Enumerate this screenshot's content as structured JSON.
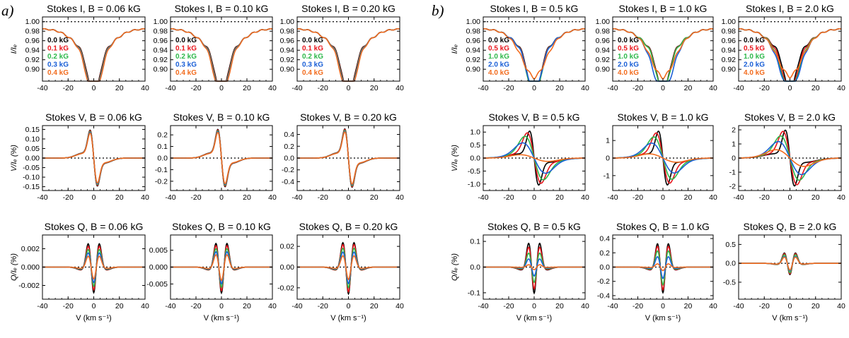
{
  "figure": {
    "panel_a_label": "a)",
    "panel_b_label": "b)",
    "x_label": "V (km s⁻¹)",
    "ylabels": {
      "I": "I/Iₑ",
      "V": "V/Iₑ (%)",
      "Q": "Q/Iₑ (%)"
    }
  },
  "colors": [
    "#000000",
    "#e8151b",
    "#2db84a",
    "#1a5fd6",
    "#f26b1d"
  ],
  "legend_a": [
    "0.0 kG",
    "0.1 kG",
    "0.2 kG",
    "0.3 kG",
    "0.4 kG"
  ],
  "legend_b": [
    "0.0 kG",
    "0.5 kG",
    "1.0 kG",
    "2.0 kG",
    "4.0 kG"
  ],
  "chart_data": [
    {
      "id": "aI1",
      "type": "line",
      "title": "Stokes I, B = 0.06 kG",
      "stokes": "I",
      "B": 0.06,
      "xlim": [
        -40,
        40
      ],
      "ylim": [
        0.875,
        1.01
      ],
      "yticks": [
        0.9,
        0.92,
        0.94,
        0.96,
        0.98,
        1.0
      ],
      "ytick_labels": [
        "0.90",
        "0.92",
        "0.94",
        "0.96",
        "0.98",
        "1.00"
      ],
      "xticks": [
        -40,
        -20,
        0,
        20,
        40
      ],
      "legend": "a",
      "core_depth": [
        0.092,
        0.092,
        0.092,
        0.092,
        0.092
      ],
      "show_xlabel": false,
      "show_ylabel": true
    },
    {
      "id": "aI2",
      "type": "line",
      "title": "Stokes I, B = 0.10 kG",
      "stokes": "I",
      "B": 0.1,
      "xlim": [
        -40,
        40
      ],
      "ylim": [
        0.875,
        1.01
      ],
      "yticks": [
        0.9,
        0.92,
        0.94,
        0.96,
        0.98,
        1.0
      ],
      "ytick_labels": [
        "0.90",
        "0.92",
        "0.94",
        "0.96",
        "0.98",
        "1.00"
      ],
      "xticks": [
        -40,
        -20,
        0,
        20,
        40
      ],
      "legend": "a",
      "core_depth": [
        0.092,
        0.092,
        0.092,
        0.092,
        0.092
      ],
      "show_xlabel": false,
      "show_ylabel": false
    },
    {
      "id": "aI3",
      "type": "line",
      "title": "Stokes I, B = 0.20 kG",
      "stokes": "I",
      "B": 0.2,
      "xlim": [
        -40,
        40
      ],
      "ylim": [
        0.875,
        1.01
      ],
      "yticks": [
        0.9,
        0.92,
        0.94,
        0.96,
        0.98,
        1.0
      ],
      "ytick_labels": [
        "0.90",
        "0.92",
        "0.94",
        "0.96",
        "0.98",
        "1.00"
      ],
      "xticks": [
        -40,
        -20,
        0,
        20,
        40
      ],
      "legend": "a",
      "core_depth": [
        0.092,
        0.092,
        0.092,
        0.092,
        0.092
      ],
      "show_xlabel": false,
      "show_ylabel": false
    },
    {
      "id": "bI1",
      "type": "line",
      "title": "Stokes I, B = 0.5 kG",
      "stokes": "I",
      "B": 0.5,
      "xlim": [
        -40,
        40
      ],
      "ylim": [
        0.875,
        1.01
      ],
      "yticks": [
        0.9,
        0.92,
        0.94,
        0.96,
        0.98,
        1.0
      ],
      "ytick_labels": [
        "0.90",
        "0.92",
        "0.94",
        "0.96",
        "0.98",
        "1.00"
      ],
      "xticks": [
        -40,
        -20,
        0,
        20,
        40
      ],
      "legend": "b",
      "core_depth": [
        0.1,
        0.099,
        0.095,
        0.083,
        0.046
      ],
      "show_xlabel": false,
      "show_ylabel": true
    },
    {
      "id": "bI2",
      "type": "line",
      "title": "Stokes I, B = 1.0 kG",
      "stokes": "I",
      "B": 1.0,
      "xlim": [
        -40,
        40
      ],
      "ylim": [
        0.875,
        1.01
      ],
      "yticks": [
        0.9,
        0.92,
        0.94,
        0.96,
        0.98,
        1.0
      ],
      "ytick_labels": [
        "0.90",
        "0.92",
        "0.94",
        "0.96",
        "0.98",
        "1.00"
      ],
      "xticks": [
        -40,
        -20,
        0,
        20,
        40
      ],
      "legend": "b",
      "core_depth": [
        0.085,
        0.084,
        0.082,
        0.078,
        0.046
      ],
      "show_xlabel": false,
      "show_ylabel": false
    },
    {
      "id": "bI3",
      "type": "line",
      "title": "Stokes I, B = 2.0 kG",
      "stokes": "I",
      "B": 2.0,
      "xlim": [
        -40,
        40
      ],
      "ylim": [
        0.875,
        1.01
      ],
      "yticks": [
        0.9,
        0.92,
        0.94,
        0.96,
        0.98,
        1.0
      ],
      "ytick_labels": [
        "0.90",
        "0.92",
        "0.94",
        "0.96",
        "0.98",
        "1.00"
      ],
      "xticks": [
        -40,
        -20,
        0,
        20,
        40
      ],
      "legend": "b",
      "core_depth": [
        0.08,
        0.079,
        0.077,
        0.074,
        0.044
      ],
      "show_xlabel": false,
      "show_ylabel": false
    },
    {
      "id": "aV1",
      "type": "line",
      "title": "Stokes V, B = 0.06 kG",
      "stokes": "V",
      "B": 0.06,
      "xlim": [
        -40,
        40
      ],
      "ylim": [
        -0.17,
        0.17
      ],
      "yticks": [
        -0.15,
        -0.1,
        -0.05,
        0.0,
        0.05,
        0.1,
        0.15
      ],
      "ytick_labels": [
        "-0.15",
        "-0.10",
        "-0.05",
        "0.00",
        "0.05",
        "0.10",
        "0.15"
      ],
      "xticks": [
        -40,
        -20,
        0,
        20,
        40
      ],
      "amps": [
        0.145,
        0.142,
        0.138,
        0.134,
        0.13
      ],
      "show_xlabel": false,
      "show_ylabel": true
    },
    {
      "id": "aV2",
      "type": "line",
      "title": "Stokes V, B = 0.10 kG",
      "stokes": "V",
      "B": 0.1,
      "xlim": [
        -40,
        40
      ],
      "ylim": [
        -0.28,
        0.28
      ],
      "yticks": [
        -0.2,
        -0.1,
        0.0,
        0.1,
        0.2
      ],
      "ytick_labels": [
        "-0.2",
        "-0.1",
        "0.0",
        "0.1",
        "0.2"
      ],
      "xticks": [
        -40,
        -20,
        0,
        20,
        40
      ],
      "amps": [
        0.245,
        0.24,
        0.233,
        0.226,
        0.22
      ],
      "show_xlabel": false,
      "show_ylabel": false
    },
    {
      "id": "aV3",
      "type": "line",
      "title": "Stokes V, B = 0.20 kG",
      "stokes": "V",
      "B": 0.2,
      "xlim": [
        -40,
        40
      ],
      "ylim": [
        -0.55,
        0.55
      ],
      "yticks": [
        -0.4,
        -0.2,
        0.0,
        0.2,
        0.4
      ],
      "ytick_labels": [
        "-0.4",
        "-0.2",
        "0.0",
        "0.2",
        "0.4"
      ],
      "xticks": [
        -40,
        -20,
        0,
        20,
        40
      ],
      "amps": [
        0.49,
        0.48,
        0.465,
        0.45,
        0.44
      ],
      "show_xlabel": false,
      "show_ylabel": false
    },
    {
      "id": "bV1",
      "type": "line",
      "title": "Stokes V, B = 0.5 kG",
      "stokes": "V",
      "B": 0.5,
      "xlim": [
        -40,
        40
      ],
      "ylim": [
        -1.25,
        1.25
      ],
      "yticks": [
        -1.0,
        -0.5,
        0.0,
        0.5,
        1.0
      ],
      "ytick_labels": [
        "-1.0",
        "-0.5",
        "0.0",
        "0.5",
        "1.0"
      ],
      "xticks": [
        -40,
        -20,
        0,
        20,
        40
      ],
      "amps": [
        1.05,
        0.95,
        0.8,
        0.55,
        0.12
      ],
      "show_xlabel": false,
      "show_ylabel": true
    },
    {
      "id": "bV2",
      "type": "line",
      "title": "Stokes V, B = 1.0 kG",
      "stokes": "V",
      "B": 1.0,
      "xlim": [
        -40,
        40
      ],
      "ylim": [
        -1.85,
        1.85
      ],
      "yticks": [
        -1,
        0,
        1
      ],
      "ytick_labels": [
        "-1",
        "0",
        "1"
      ],
      "xticks": [
        -40,
        -20,
        0,
        20,
        40
      ],
      "amps": [
        1.55,
        1.4,
        1.15,
        0.8,
        0.22
      ],
      "show_xlabel": false,
      "show_ylabel": false
    },
    {
      "id": "bV3",
      "type": "line",
      "title": "Stokes V, B = 2.0 kG",
      "stokes": "V",
      "B": 2.0,
      "xlim": [
        -40,
        40
      ],
      "ylim": [
        -2.3,
        2.3
      ],
      "yticks": [
        -2,
        -1,
        0,
        1,
        2
      ],
      "ytick_labels": [
        "-2",
        "-1",
        "0",
        "1",
        "2"
      ],
      "xticks": [
        -40,
        -20,
        0,
        20,
        40
      ],
      "amps": [
        2.0,
        1.85,
        1.5,
        1.1,
        0.55
      ],
      "show_xlabel": false,
      "show_ylabel": false
    },
    {
      "id": "aQ1",
      "type": "line",
      "title": "Stokes Q, B = 0.06 kG",
      "stokes": "Q",
      "B": 0.06,
      "xlim": [
        -40,
        40
      ],
      "ylim": [
        -0.0035,
        0.0035
      ],
      "yticks": [
        -0.002,
        0.0,
        0.002
      ],
      "ytick_labels": [
        "-0.002",
        "0.000",
        "0.002"
      ],
      "xticks": [
        -40,
        -20,
        0,
        20,
        40
      ],
      "amps": [
        0.0028,
        0.0025,
        0.0021,
        0.0017,
        0.0013
      ],
      "show_xlabel": true,
      "show_ylabel": true
    },
    {
      "id": "aQ2",
      "type": "line",
      "title": "Stokes Q, B = 0.10 kG",
      "stokes": "Q",
      "B": 0.1,
      "xlim": [
        -40,
        40
      ],
      "ylim": [
        -0.0095,
        0.0095
      ],
      "yticks": [
        -0.005,
        0.0,
        0.005
      ],
      "ytick_labels": [
        "-0.005",
        "0.000",
        "0.005"
      ],
      "xticks": [
        -40,
        -20,
        0,
        20,
        40
      ],
      "amps": [
        0.0077,
        0.007,
        0.006,
        0.005,
        0.004
      ],
      "show_xlabel": true,
      "show_ylabel": false
    },
    {
      "id": "aQ3",
      "type": "line",
      "title": "Stokes Q, B = 0.20 kG",
      "stokes": "Q",
      "B": 0.2,
      "xlim": [
        -40,
        40
      ],
      "ylim": [
        -0.031,
        0.031
      ],
      "yticks": [
        -0.02,
        0.0,
        0.02
      ],
      "ytick_labels": [
        "-0.02",
        "0.00",
        "0.02"
      ],
      "xticks": [
        -40,
        -20,
        0,
        20,
        40
      ],
      "amps": [
        0.026,
        0.024,
        0.02,
        0.016,
        0.012
      ],
      "show_xlabel": true,
      "show_ylabel": false
    },
    {
      "id": "bQ1",
      "type": "line",
      "title": "Stokes Q, B = 0.5 kG",
      "stokes": "Q",
      "B": 0.5,
      "xlim": [
        -40,
        40
      ],
      "ylim": [
        -0.125,
        0.125
      ],
      "yticks": [
        -0.1,
        0.0,
        0.1
      ],
      "ytick_labels": [
        "-0.1",
        "0.0",
        "0.1"
      ],
      "xticks": [
        -40,
        -20,
        0,
        20,
        40
      ],
      "amps": [
        0.102,
        0.085,
        0.06,
        0.035,
        0.01
      ],
      "show_xlabel": true,
      "show_ylabel": true
    },
    {
      "id": "bQ2",
      "type": "line",
      "title": "Stokes Q, B = 1.0 kG",
      "stokes": "Q",
      "B": 1.0,
      "xlim": [
        -40,
        40
      ],
      "ylim": [
        -0.45,
        0.45
      ],
      "yticks": [
        -0.4,
        -0.2,
        0.0,
        0.2,
        0.4
      ],
      "ytick_labels": [
        "-0.4",
        "-0.2",
        "0.0",
        "0.2",
        "0.4"
      ],
      "xticks": [
        -40,
        -20,
        0,
        20,
        40
      ],
      "amps": [
        0.36,
        0.32,
        0.25,
        0.16,
        0.05
      ],
      "show_xlabel": true,
      "show_ylabel": false
    },
    {
      "id": "bQ3",
      "type": "line",
      "title": "Stokes Q, B = 2.0 kG",
      "stokes": "Q",
      "B": 2.0,
      "xlim": [
        -40,
        40
      ],
      "ylim": [
        -0.95,
        0.75
      ],
      "yticks": [
        -0.5,
        0.0,
        0.5
      ],
      "ytick_labels": [
        "-0.5",
        "0.0",
        "0.5"
      ],
      "xticks": [
        -40,
        -20,
        0,
        20,
        40
      ],
      "amps": [
        0.3,
        0.28,
        0.25,
        0.2,
        0.18
      ],
      "show_xlabel": true,
      "show_ylabel": false
    }
  ]
}
